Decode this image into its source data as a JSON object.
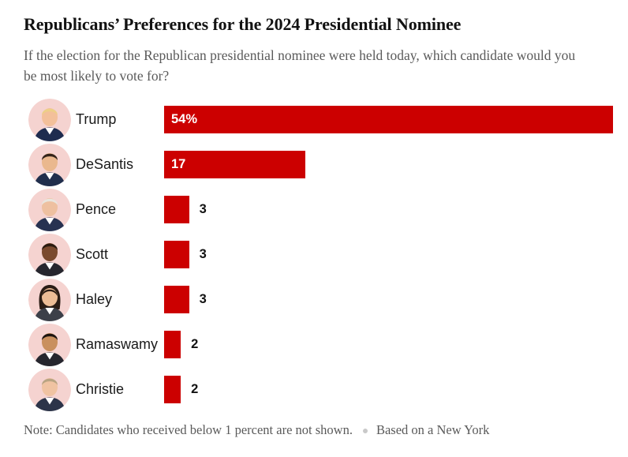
{
  "header": {
    "title": "Republicans’ Preferences for the 2024 Presidential Nominee",
    "subtitle": "If the election for the Republican presidential nominee were held today, which candidate would you be most likely to vote for?"
  },
  "chart_data": {
    "type": "bar",
    "orientation": "horizontal",
    "title": "Republicans’ Preferences for the 2024 Presidential Nominee",
    "categories": [
      "Trump",
      "DeSantis",
      "Pence",
      "Scott",
      "Haley",
      "Ramaswamy",
      "Christie"
    ],
    "values": [
      54,
      17,
      3,
      3,
      3,
      2,
      2
    ],
    "value_labels": [
      "54%",
      "17",
      "3",
      "3",
      "3",
      "2",
      "2"
    ],
    "unit": "percent",
    "xlim": [
      0,
      54
    ],
    "grid": false,
    "legend": "none",
    "bar_color": "#cc0000",
    "inside_label_threshold": 10,
    "avatars": [
      {
        "person": "donald-trump",
        "bg": "#f5d3d0",
        "skin": "#f3c09a",
        "hair": "#edcf87",
        "suit": "#1e2c4f",
        "long_hair": false
      },
      {
        "person": "ron-desantis",
        "bg": "#f5d3d0",
        "skin": "#eab88e",
        "hair": "#33241a",
        "suit": "#202e4c",
        "long_hair": false
      },
      {
        "person": "mike-pence",
        "bg": "#f5d3d0",
        "skin": "#eec0a0",
        "hair": "#e9e5de",
        "suit": "#273251",
        "long_hair": false
      },
      {
        "person": "tim-scott",
        "bg": "#f5d3d0",
        "skin": "#7a4a2e",
        "hair": "#2a1b10",
        "suit": "#26262e",
        "long_hair": false
      },
      {
        "person": "nikki-haley",
        "bg": "#f5d3d0",
        "skin": "#edbd96",
        "hair": "#2b1d15",
        "suit": "#3c4049",
        "long_hair": true
      },
      {
        "person": "vivek-ramaswamy",
        "bg": "#f5d3d0",
        "skin": "#c9905e",
        "hair": "#1d1510",
        "suit": "#26262e",
        "long_hair": false
      },
      {
        "person": "chris-christie",
        "bg": "#f5d3d0",
        "skin": "#f0c3a2",
        "hair": "#b9a482",
        "suit": "#2c3449",
        "long_hair": false
      }
    ]
  },
  "footer": {
    "note": "Note: Candidates who received below 1 percent are not shown.",
    "source": "Based on a New York"
  },
  "colors": {
    "bar": "#cc0000",
    "title_text": "#121212",
    "subtitle_text": "#5a5a5a",
    "value_inside": "#ffffff",
    "value_outside": "#121212",
    "avatar_bg": "#f5d3d0",
    "footer_dot": "#c9c9c9"
  }
}
